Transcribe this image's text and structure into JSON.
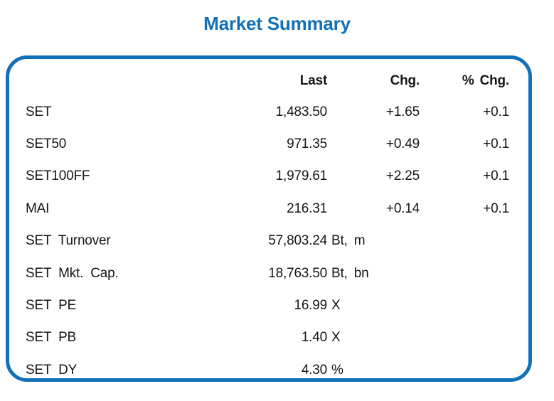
{
  "title": "Market Summary",
  "accent_color": "#1270b8",
  "text_color": "#161616",
  "table": {
    "headers": {
      "last": "Last",
      "chg": "Chg.",
      "pct_chg": "% Chg."
    },
    "rows": [
      {
        "label": "SET",
        "last": "1,483.50",
        "unit": "",
        "chg": "+1.65",
        "pct_chg": "+0.1"
      },
      {
        "label": "SET50",
        "last": "971.35",
        "unit": "",
        "chg": "+0.49",
        "pct_chg": "+0.1"
      },
      {
        "label": "SET100FF",
        "last": "1,979.61",
        "unit": "",
        "chg": "+2.25",
        "pct_chg": "+0.1"
      },
      {
        "label": "MAI",
        "last": "216.31",
        "unit": "",
        "chg": "+0.14",
        "pct_chg": "+0.1"
      },
      {
        "label": "SET Turnover",
        "last": "57,803.24",
        "unit": "Bt, m",
        "chg": "",
        "pct_chg": ""
      },
      {
        "label": "SET Mkt. Cap.",
        "last": "18,763.50",
        "unit": "Bt, bn",
        "chg": "",
        "pct_chg": ""
      },
      {
        "label": "SET PE",
        "last": "16.99",
        "unit": "X",
        "chg": "",
        "pct_chg": ""
      },
      {
        "label": "SET PB",
        "last": "1.40",
        "unit": "X",
        "chg": "",
        "pct_chg": ""
      },
      {
        "label": "SET DY",
        "last": "4.30",
        "unit": "%",
        "chg": "",
        "pct_chg": ""
      }
    ]
  }
}
